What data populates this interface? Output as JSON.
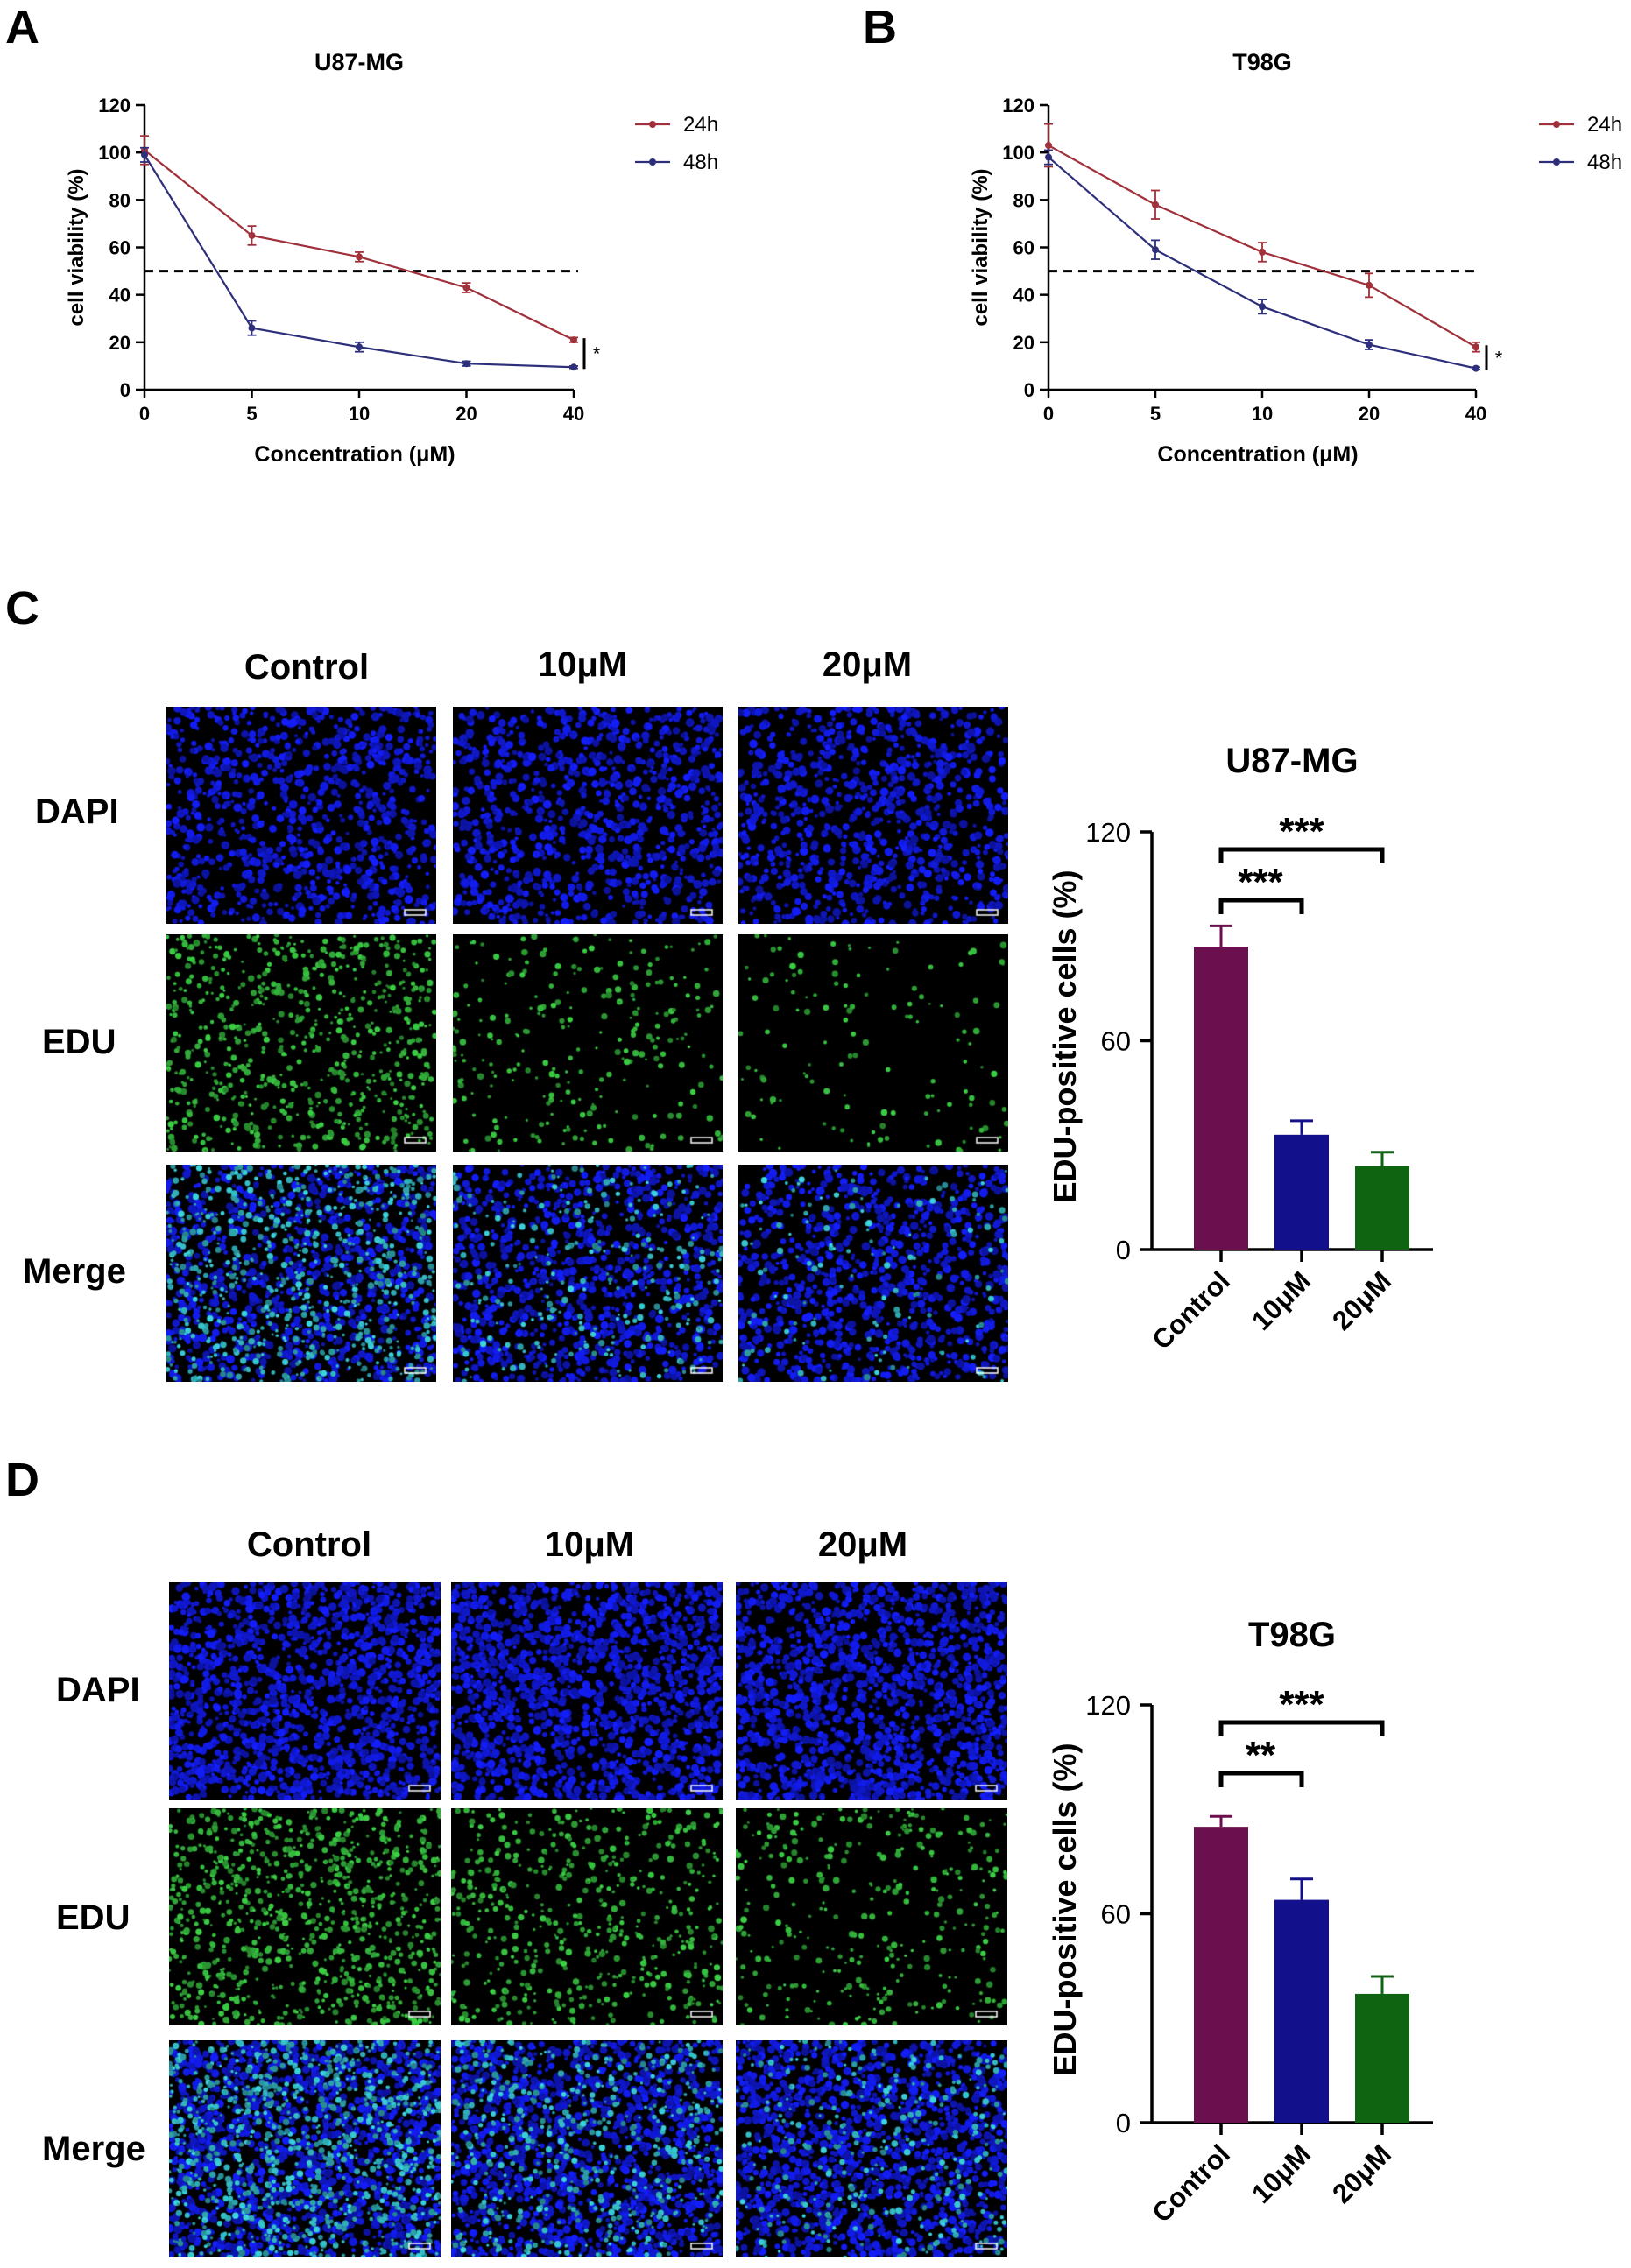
{
  "panels": {
    "A": "A",
    "B": "B",
    "C": "C",
    "D": "D"
  },
  "micrograph_grids": [
    {
      "id": "C",
      "columns": [
        "Control",
        "10μM",
        "20μM"
      ],
      "rows": [
        "DAPI",
        "EDU",
        "Merge"
      ]
    },
    {
      "id": "D",
      "columns": [
        "Control",
        "10μM",
        "20μM"
      ],
      "rows": [
        "DAPI",
        "EDU",
        "Merge"
      ]
    }
  ],
  "colors": {
    "line_24h": "#a0303a",
    "line_48h": "#2e2f7a",
    "bar_control": "#6b0f4e",
    "bar_10": "#12108a",
    "bar_20": "#0f6412",
    "dapi": "#1a1cf0",
    "edu": "#3fd64a",
    "merge": "#38d8e0"
  },
  "chart_data": [
    {
      "id": "A",
      "type": "line",
      "title": "U87-MG",
      "xlabel": "Concentration (μM)",
      "ylabel": "cell viability (%)",
      "categories": [
        "0",
        "5",
        "10",
        "20",
        "40"
      ],
      "ylim": [
        0,
        120
      ],
      "yticks": [
        "0",
        "20",
        "40",
        "60",
        "80",
        "100",
        "120"
      ],
      "reference_line": 50,
      "series": [
        {
          "name": "24h",
          "values": [
            101,
            65,
            56,
            43,
            21
          ],
          "errors": [
            6,
            4,
            2,
            2,
            1
          ]
        },
        {
          "name": "48h",
          "values": [
            99,
            26,
            18,
            11,
            9.5
          ],
          "errors": [
            3,
            3,
            2,
            1,
            0.5
          ]
        }
      ],
      "significance": "*",
      "legend": "top-right"
    },
    {
      "id": "B",
      "type": "line",
      "title": "T98G",
      "xlabel": "Concentration (μM)",
      "ylabel": "cell viability (%)",
      "categories": [
        "0",
        "5",
        "10",
        "20",
        "40"
      ],
      "ylim": [
        0,
        120
      ],
      "yticks": [
        "0",
        "20",
        "40",
        "60",
        "80",
        "100",
        "120"
      ],
      "reference_line": 50,
      "series": [
        {
          "name": "24h",
          "values": [
            103,
            78,
            58,
            44,
            18
          ],
          "errors": [
            9,
            6,
            4,
            5,
            2
          ]
        },
        {
          "name": "48h",
          "values": [
            98,
            59,
            35,
            19,
            9
          ],
          "errors": [
            3,
            4,
            3,
            2,
            0.5
          ]
        }
      ],
      "significance": "*",
      "legend": "top-right"
    },
    {
      "id": "C",
      "type": "bar",
      "title": "U87-MG",
      "xlabel": "",
      "ylabel": "EDU-positive cells (%)",
      "categories": [
        "Control",
        "10μM",
        "20μM"
      ],
      "values": [
        87,
        33,
        24
      ],
      "errors": [
        6,
        4,
        4
      ],
      "ylim": [
        0,
        120
      ],
      "yticks": [
        "0",
        "60",
        "120"
      ],
      "comparisons": [
        {
          "from": 0,
          "to": 1,
          "label": "***"
        },
        {
          "from": 0,
          "to": 2,
          "label": "***"
        }
      ]
    },
    {
      "id": "D",
      "type": "bar",
      "title": "T98G",
      "xlabel": "",
      "ylabel": "EDU-positive cells (%)",
      "categories": [
        "Control",
        "10μM",
        "20μM"
      ],
      "values": [
        85,
        64,
        37
      ],
      "errors": [
        3,
        6,
        5
      ],
      "ylim": [
        0,
        120
      ],
      "yticks": [
        "0",
        "60",
        "120"
      ],
      "comparisons": [
        {
          "from": 0,
          "to": 1,
          "label": "**"
        },
        {
          "from": 0,
          "to": 2,
          "label": "***"
        }
      ]
    }
  ]
}
